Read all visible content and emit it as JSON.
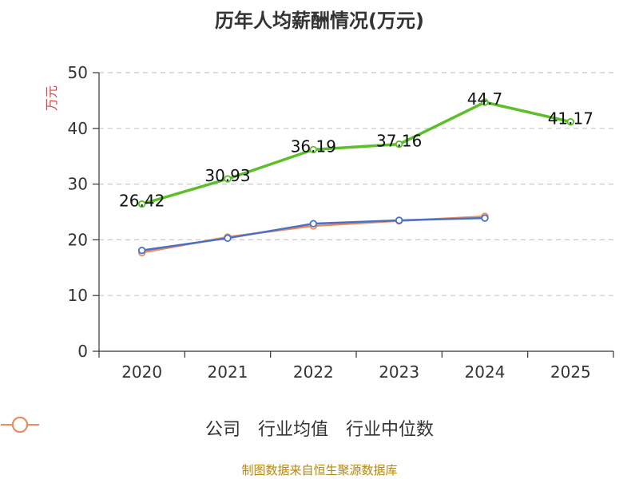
{
  "chart_data": {
    "type": "line",
    "title": "历年人均薪酬情况(万元)",
    "ylabel": "万元",
    "xlabel": "",
    "categories": [
      "2020",
      "2021",
      "2022",
      "2023",
      "2024",
      "2025"
    ],
    "ylim": [
      0,
      50
    ],
    "yticks": [
      0,
      10,
      20,
      30,
      40,
      50
    ],
    "grid": true,
    "legend_position": "bottom",
    "series": [
      {
        "name": "公司",
        "color": "#5cbf2a",
        "show_labels": true,
        "values": [
          26.42,
          30.93,
          36.19,
          37.16,
          44.7,
          41.17
        ],
        "labels": [
          "26.42",
          "30.93",
          "36.19",
          "37.16",
          "44.7",
          "41.17"
        ]
      },
      {
        "name": "行业均值",
        "color": "#4a72c4",
        "show_labels": false,
        "values": [
          18.1,
          20.3,
          22.9,
          23.5,
          23.9,
          null
        ]
      },
      {
        "name": "行业中位数",
        "color": "#f08c5a",
        "show_labels": false,
        "values": [
          17.7,
          20.5,
          22.5,
          23.4,
          24.2,
          null
        ]
      }
    ]
  },
  "source": "制图数据来自恒生聚源数据库"
}
